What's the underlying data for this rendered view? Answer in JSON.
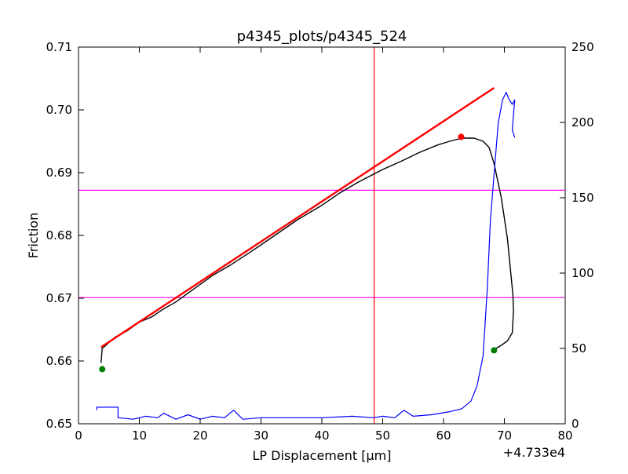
{
  "chart_data": {
    "type": "line",
    "title": "p4345_plots/p4345_524",
    "xlabel": "LP Displacement [μm]",
    "ylabel": "Friction",
    "x_offset_label": "+4.733e4",
    "xlim": [
      0,
      80
    ],
    "ylim": [
      0.65,
      0.71
    ],
    "y2lim": [
      0,
      250
    ],
    "xticks": [
      "0",
      "10",
      "20",
      "30",
      "40",
      "50",
      "60",
      "70",
      "80"
    ],
    "yticks": [
      "0.65",
      "0.66",
      "0.67",
      "0.68",
      "0.69",
      "0.70",
      "0.71"
    ],
    "y2ticks": [
      "0",
      "50",
      "100",
      "150",
      "200",
      "250"
    ],
    "grid": false,
    "colors": {
      "friction": "#000000",
      "fit": "#ff0000",
      "secondary": "#0000ff",
      "hlines": "#ff00ff",
      "vline": "#ff0000",
      "markers_green": "#008000",
      "marker_red": "#ff0000"
    },
    "series": [
      {
        "axis": "left",
        "x": [
          3.7,
          3.9,
          4.5,
          6,
          8,
          10,
          12,
          14,
          16,
          18,
          20,
          22,
          25,
          28,
          30,
          33,
          36,
          40,
          43,
          46,
          50,
          53,
          56,
          59,
          61,
          63,
          65,
          66.5,
          67.5,
          68.3,
          69.5,
          70.5,
          71,
          71.4,
          71.5,
          71.3,
          70.5,
          69.5,
          68.3
        ],
        "y": [
          0.6597,
          0.662,
          0.6625,
          0.6638,
          0.6648,
          0.6662,
          0.667,
          0.6683,
          0.6694,
          0.6708,
          0.6722,
          0.6736,
          0.6753,
          0.6772,
          0.6785,
          0.6805,
          0.6825,
          0.6848,
          0.6868,
          0.6885,
          0.6905,
          0.6918,
          0.6932,
          0.6944,
          0.695,
          0.6955,
          0.6955,
          0.695,
          0.694,
          0.6915,
          0.686,
          0.6795,
          0.6745,
          0.6705,
          0.668,
          0.6645,
          0.6632,
          0.6625,
          0.6618
        ]
      },
      {
        "axis": "left",
        "x": [
          3.7,
          68.3
        ],
        "y": [
          0.6622,
          0.7035
        ]
      },
      {
        "axis": "right",
        "x": [
          3,
          3,
          5,
          6.5,
          6.5,
          9,
          11,
          13,
          14,
          16,
          18,
          20,
          22,
          24,
          25.5,
          27,
          30,
          35,
          40,
          45,
          48.5,
          50,
          52,
          53.5,
          55,
          58,
          61,
          63,
          64.5,
          65.5,
          66.5,
          67.2,
          67.7,
          68,
          68.3,
          68.7,
          69,
          69.7,
          70.3,
          70.8,
          71.3,
          71.7,
          71.5,
          71.3,
          71.7
        ],
        "y": [
          9,
          11,
          11,
          11,
          4,
          3,
          5,
          4,
          7,
          3,
          6,
          3,
          5,
          4,
          9,
          3,
          4,
          4,
          4,
          5,
          4,
          5,
          4,
          9,
          5,
          6,
          8,
          10,
          15,
          25,
          45,
          90,
          135,
          150,
          165,
          185,
          200,
          215,
          220,
          215,
          212,
          215,
          205,
          195,
          190
        ]
      }
    ],
    "hlines_left": [
      0.6872,
      0.6701
    ],
    "vline_x": 48.6,
    "markers": [
      {
        "x": 3.9,
        "y": 0.6587,
        "color": "green"
      },
      {
        "x": 68.3,
        "y": 0.6617,
        "color": "green"
      },
      {
        "x": 62.9,
        "y": 0.6957,
        "color": "red"
      }
    ]
  }
}
